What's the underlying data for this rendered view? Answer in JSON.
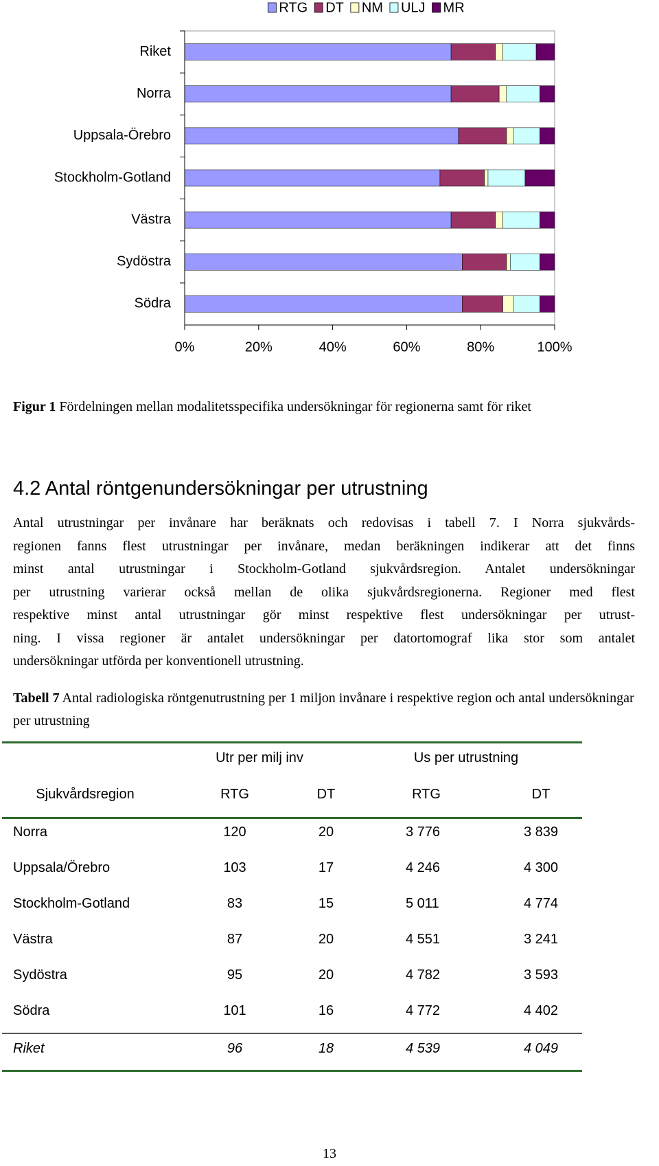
{
  "chart_data": {
    "type": "bar",
    "stacked": true,
    "orientation": "horizontal",
    "categories": [
      "Riket",
      "Norra",
      "Uppsala-Örebro",
      "Stockholm-Gotland",
      "Västra",
      "Sydöstra",
      "Södra"
    ],
    "series": [
      {
        "name": "RTG",
        "color": "#9999ff",
        "values": [
          72,
          72,
          74,
          69,
          72,
          75,
          75
        ]
      },
      {
        "name": "DT",
        "color": "#993366",
        "values": [
          12,
          13,
          13,
          12,
          12,
          12,
          11
        ]
      },
      {
        "name": "NM",
        "color": "#ffffcc",
        "values": [
          2,
          2,
          2,
          1,
          2,
          1,
          3
        ]
      },
      {
        "name": "ULJ",
        "color": "#ccffff",
        "values": [
          9,
          9,
          7,
          10,
          10,
          8,
          7
        ]
      },
      {
        "name": "MR",
        "color": "#660066",
        "values": [
          5,
          4,
          4,
          8,
          4,
          4,
          4
        ]
      }
    ],
    "xlim": [
      0,
      100
    ],
    "xticks": [
      {
        "value": 0,
        "label": "0%"
      },
      {
        "value": 20,
        "label": "20%"
      },
      {
        "value": 40,
        "label": "40%"
      },
      {
        "value": 60,
        "label": "60%"
      },
      {
        "value": 80,
        "label": "80%"
      },
      {
        "value": 100,
        "label": "100%"
      }
    ],
    "legend": "top"
  },
  "figure_caption": {
    "label": "Figur 1",
    "text": "Fördelningen mellan modalitetsspecifika undersökningar för regionerna samt för riket"
  },
  "heading": "4.2 Antal röntgenundersökningar per utrustning",
  "paragraph": [
    "Antal utrustningar per invånare har beräknats och redovisas i tabell 7. I Norra sjukvårds-",
    "regionen fanns flest utrustningar per invånare, medan beräkningen indikerar att det finns",
    "minst antal utrustningar i Stockholm-Gotland sjukvårdsregion. Antalet undersökningar",
    "per utrustning varierar också mellan de olika sjukvårdsregionerna. Regioner med flest",
    "respektive minst antal utrustningar gör minst respektive flest undersökningar per utrust-",
    "ning. I vissa regioner är antalet undersökningar per datortomograf lika stor som antalet",
    "undersökningar utförda per konventionell utrustning."
  ],
  "table_caption": {
    "label": "Tabell 7",
    "text": "Antal radiologiska röntgenutrustning per 1 miljon invånare i respektive region och antal undersökningar per utrustning"
  },
  "table": {
    "group_headers": [
      "Utr per milj inv",
      "Us per utrustning"
    ],
    "header": [
      "Sjukvårdsregion",
      "RTG",
      "DT",
      "RTG",
      "DT"
    ],
    "rows": [
      [
        "Norra",
        "120",
        "20",
        "3 776",
        "3 839"
      ],
      [
        "Uppsala/Örebro",
        "103",
        "17",
        "4 246",
        "4 300"
      ],
      [
        "Stockholm-Gotland",
        "83",
        "15",
        "5 011",
        "4 774"
      ],
      [
        "Västra",
        "87",
        "20",
        "4 551",
        "3 241"
      ],
      [
        "Sydöstra",
        "95",
        "20",
        "4 782",
        "3 593"
      ],
      [
        "Södra",
        "101",
        "16",
        "4 772",
        "4 402"
      ]
    ],
    "total_row": [
      "Riket",
      "96",
      "18",
      "4 539",
      "4 049"
    ]
  },
  "page_number": "13"
}
